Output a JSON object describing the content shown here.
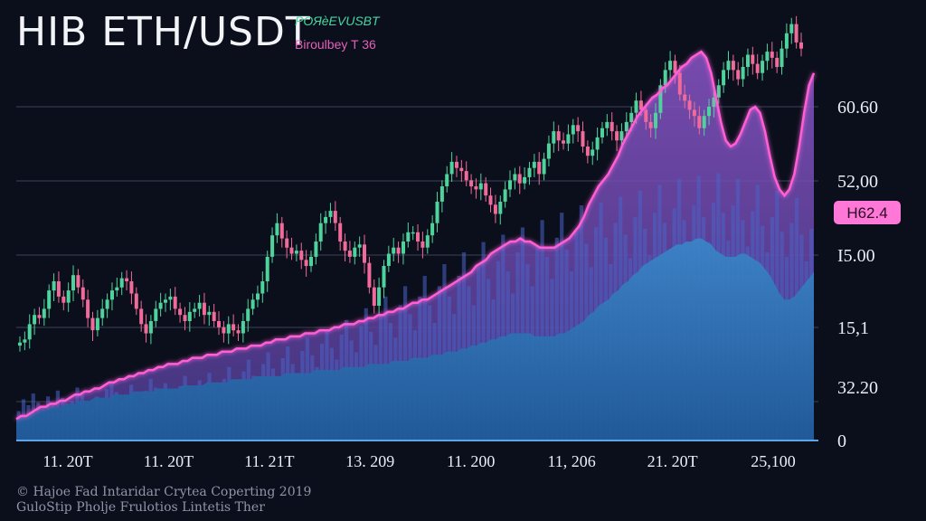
{
  "header": {
    "title": "HIB ETH/USDT"
  },
  "legend": {
    "line1": "POЯѐEVUSBT",
    "line2": "Biroulbey T 36"
  },
  "footer": {
    "line1": "© Hajoe Fad Intaridar Crytea Coperting 2019",
    "line2": "GuloStip Pholje Frulotios Lintetis Ther"
  },
  "colors": {
    "background": "#0b0f1c",
    "candle_up": "#4fd39c",
    "candle_down": "#f06a9a",
    "line": "#ff5fd6",
    "purple_area": "#7a4fb5",
    "blue_area": "#2d6fb0",
    "volume": "#4a63c8",
    "grid": "#3b4258"
  },
  "chart_data": {
    "type": "line",
    "x_tick_labels": [
      "11. 20T",
      "11. 20T",
      "11. 21T",
      "13. 209",
      "11. 200",
      "11, 206",
      "21. 20T",
      "25,100"
    ],
    "y_tick_labels": [
      "60.60",
      "52,00",
      "I5.00",
      "15,1",
      "32.20",
      "0"
    ],
    "price_badge": "H62.4",
    "grid": true,
    "series": [
      {
        "type": "candlestick",
        "close": [
          0.27,
          0.28,
          0.33,
          0.36,
          0.35,
          0.38,
          0.44,
          0.47,
          0.42,
          0.4,
          0.44,
          0.49,
          0.45,
          0.41,
          0.35,
          0.31,
          0.35,
          0.38,
          0.41,
          0.44,
          0.45,
          0.48,
          0.47,
          0.43,
          0.38,
          0.33,
          0.3,
          0.34,
          0.38,
          0.4,
          0.41,
          0.42,
          0.38,
          0.36,
          0.34,
          0.37,
          0.38,
          0.4,
          0.36,
          0.37,
          0.34,
          0.32,
          0.3,
          0.33,
          0.31,
          0.3,
          0.34,
          0.38,
          0.41,
          0.43,
          0.47,
          0.55,
          0.62,
          0.66,
          0.61,
          0.58,
          0.56,
          0.57,
          0.54,
          0.52,
          0.55,
          0.6,
          0.66,
          0.68,
          0.7,
          0.66,
          0.6,
          0.57,
          0.55,
          0.58,
          0.59,
          0.53,
          0.45,
          0.39,
          0.45,
          0.52,
          0.56,
          0.58,
          0.56,
          0.6,
          0.63,
          0.63,
          0.6,
          0.58,
          0.62,
          0.66,
          0.73,
          0.78,
          0.82,
          0.86,
          0.84,
          0.83,
          0.8,
          0.78,
          0.77,
          0.79,
          0.75,
          0.72,
          0.69,
          0.73,
          0.77,
          0.8,
          0.82,
          0.79,
          0.81,
          0.84,
          0.86,
          0.82,
          0.87,
          0.92,
          0.96,
          0.93,
          0.92,
          0.95,
          0.98,
          0.96,
          0.91,
          0.88,
          0.9,
          0.94,
          0.97,
          0.99,
          0.96,
          0.93,
          0.96,
          0.99,
          1.02,
          1.06,
          1.03,
          0.99,
          0.97,
          1.02,
          1.11,
          1.16,
          1.19,
          1.15,
          1.08,
          1.06,
          1.03,
          1.01,
          0.97,
          1.01,
          1.04,
          1.07,
          1.11,
          1.16,
          1.19,
          1.16,
          1.13,
          1.17,
          1.21,
          1.18,
          1.15,
          1.19,
          1.22,
          1.2,
          1.17,
          1.23,
          1.28,
          1.31,
          1.25,
          1.23
        ]
      },
      {
        "type": "line",
        "values": [
          0.07,
          0.08,
          0.08,
          0.09,
          0.1,
          0.11,
          0.11,
          0.12,
          0.12,
          0.13,
          0.13,
          0.14,
          0.15,
          0.15,
          0.16,
          0.16,
          0.17,
          0.17,
          0.18,
          0.19,
          0.19,
          0.2,
          0.2,
          0.21,
          0.21,
          0.22,
          0.22,
          0.23,
          0.23,
          0.24,
          0.24,
          0.25,
          0.25,
          0.25,
          0.26,
          0.26,
          0.27,
          0.27,
          0.27,
          0.28,
          0.28,
          0.28,
          0.29,
          0.29,
          0.29,
          0.3,
          0.3,
          0.3,
          0.31,
          0.31,
          0.31,
          0.32,
          0.32,
          0.33,
          0.33,
          0.33,
          0.34,
          0.34,
          0.34,
          0.35,
          0.35,
          0.35,
          0.36,
          0.36,
          0.36,
          0.37,
          0.37,
          0.38,
          0.38,
          0.38,
          0.39,
          0.39,
          0.4,
          0.4,
          0.41,
          0.41,
          0.42,
          0.42,
          0.43,
          0.43,
          0.44,
          0.45,
          0.45,
          0.46,
          0.46,
          0.47,
          0.48,
          0.49,
          0.5,
          0.51,
          0.52,
          0.53,
          0.54,
          0.55,
          0.57,
          0.58,
          0.59,
          0.61,
          0.62,
          0.63,
          0.64,
          0.65,
          0.65,
          0.66,
          0.65,
          0.65,
          0.64,
          0.63,
          0.63,
          0.63,
          0.63,
          0.64,
          0.65,
          0.66,
          0.68,
          0.7,
          0.73,
          0.77,
          0.8,
          0.83,
          0.85,
          0.87,
          0.9,
          0.93,
          0.97,
          1.0,
          1.03,
          1.06,
          1.08,
          1.1,
          1.12,
          1.13,
          1.15,
          1.16,
          1.18,
          1.2,
          1.22,
          1.23,
          1.25,
          1.26,
          1.27,
          1.25,
          1.2,
          1.12,
          1.04,
          0.98,
          0.96,
          0.97,
          1.0,
          1.04,
          1.08,
          1.09,
          1.07,
          1.01,
          0.93,
          0.86,
          0.82,
          0.8,
          0.82,
          0.87,
          0.96,
          1.07,
          1.16,
          1.2
        ]
      },
      {
        "type": "area",
        "values": [
          0.07,
          0.08,
          0.08,
          0.09,
          0.09,
          0.1,
          0.1,
          0.11,
          0.11,
          0.11,
          0.12,
          0.12,
          0.12,
          0.13,
          0.13,
          0.13,
          0.14,
          0.14,
          0.14,
          0.14,
          0.15,
          0.15,
          0.15,
          0.15,
          0.16,
          0.16,
          0.16,
          0.16,
          0.16,
          0.17,
          0.17,
          0.17,
          0.17,
          0.17,
          0.18,
          0.18,
          0.18,
          0.18,
          0.18,
          0.19,
          0.19,
          0.19,
          0.19,
          0.19,
          0.2,
          0.2,
          0.2,
          0.2,
          0.2,
          0.21,
          0.21,
          0.21,
          0.21,
          0.21,
          0.21,
          0.22,
          0.22,
          0.22,
          0.22,
          0.22,
          0.22,
          0.23,
          0.23,
          0.23,
          0.23,
          0.23,
          0.23,
          0.24,
          0.24,
          0.24,
          0.24,
          0.24,
          0.25,
          0.25,
          0.25,
          0.25,
          0.25,
          0.26,
          0.26,
          0.26,
          0.26,
          0.27,
          0.27,
          0.27,
          0.27,
          0.28,
          0.28,
          0.28,
          0.29,
          0.29,
          0.29,
          0.3,
          0.3,
          0.31,
          0.31,
          0.32,
          0.32,
          0.33,
          0.33,
          0.34,
          0.34,
          0.35,
          0.35,
          0.35,
          0.35,
          0.35,
          0.34,
          0.34,
          0.34,
          0.34,
          0.34,
          0.35,
          0.35,
          0.36,
          0.37,
          0.38,
          0.39,
          0.41,
          0.42,
          0.44,
          0.45,
          0.46,
          0.48,
          0.49,
          0.51,
          0.52,
          0.54,
          0.55,
          0.57,
          0.58,
          0.59,
          0.6,
          0.61,
          0.62,
          0.63,
          0.64,
          0.64,
          0.65,
          0.65,
          0.66,
          0.66,
          0.65,
          0.64,
          0.62,
          0.61,
          0.6,
          0.6,
          0.6,
          0.61,
          0.61,
          0.6,
          0.59,
          0.58,
          0.56,
          0.54,
          0.51,
          0.48,
          0.46,
          0.46,
          0.47,
          0.49,
          0.51,
          0.53,
          0.55
        ]
      },
      {
        "type": "bar",
        "values": [
          0.2,
          0.28,
          0.24,
          0.32,
          0.26,
          0.22,
          0.3,
          0.25,
          0.34,
          0.29,
          0.23,
          0.27,
          0.36,
          0.31,
          0.26,
          0.22,
          0.3,
          0.28,
          0.35,
          0.4,
          0.33,
          0.27,
          0.31,
          0.38,
          0.29,
          0.25,
          0.34,
          0.42,
          0.36,
          0.3,
          0.39,
          0.33,
          0.28,
          0.37,
          0.44,
          0.35,
          0.3,
          0.41,
          0.36,
          0.46,
          0.38,
          0.33,
          0.42,
          0.5,
          0.41,
          0.35,
          0.47,
          0.55,
          0.44,
          0.38,
          0.52,
          0.6,
          0.49,
          0.43,
          0.56,
          0.64,
          0.52,
          0.46,
          0.61,
          0.7,
          0.58,
          0.5,
          0.66,
          0.75,
          0.63,
          0.55,
          0.72,
          0.82,
          0.68,
          0.6,
          0.78,
          0.9,
          0.74,
          0.65,
          0.85,
          0.98,
          0.8,
          0.7,
          0.92,
          1.05,
          0.86,
          0.75,
          0.98,
          1.12,
          0.92,
          0.8,
          1.05,
          1.2,
          0.98,
          0.86,
          1.12,
          1.28,
          1.05,
          0.92,
          1.18,
          1.35,
          1.1,
          0.96,
          1.22,
          1.4,
          1.15,
          1.0,
          1.28,
          1.45,
          1.2,
          1.05,
          1.32,
          1.5,
          1.25,
          1.1,
          1.38,
          1.55,
          1.3,
          1.15,
          1.42,
          1.6,
          1.34,
          1.18,
          1.45,
          1.62,
          1.38,
          1.2,
          1.48,
          1.66,
          1.4,
          1.24,
          1.52,
          1.7,
          1.44,
          1.26,
          1.55,
          1.74,
          1.48,
          1.3,
          1.58,
          1.78,
          1.5,
          1.33,
          1.6,
          1.8,
          1.52,
          1.35,
          1.62,
          1.82,
          1.55,
          1.36,
          1.6,
          1.78,
          1.5,
          1.32,
          1.56,
          1.74,
          1.46,
          1.28,
          1.52,
          1.7,
          1.42,
          1.25,
          1.48,
          1.65,
          1.4,
          1.22,
          1.44
        ]
      }
    ]
  }
}
